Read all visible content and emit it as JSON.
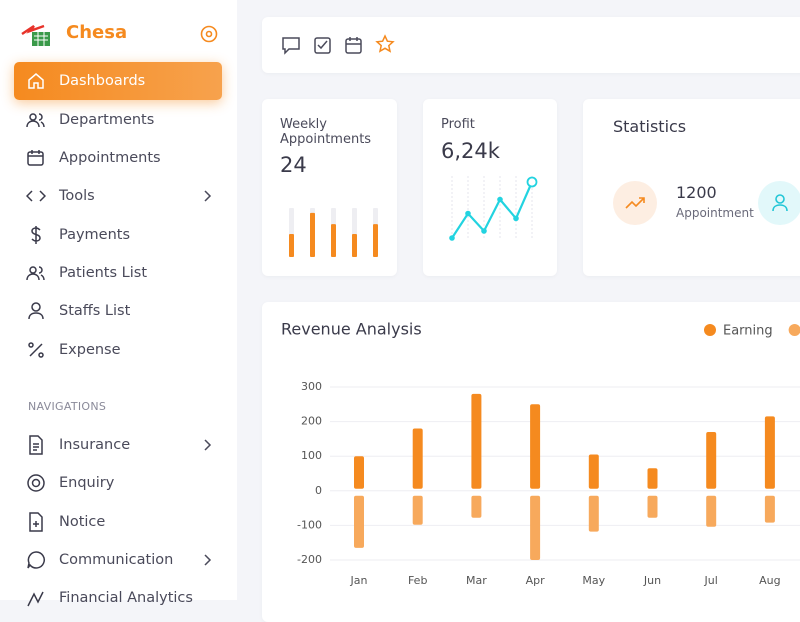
{
  "brand": "Chesa",
  "menu": [
    "Dashboards",
    "Departments",
    "Appointments",
    "Tools",
    "Payments",
    "Patients List",
    "Staffs List",
    "Expense"
  ],
  "navigations_heading": "NAVIGATIONS",
  "navigations": [
    "Insurance",
    "Enquiry",
    "Notice",
    "Communication",
    "Financial Analytics"
  ],
  "weekly": {
    "title": "Weekly Appointments",
    "value": 24,
    "bars": [
      47,
      90,
      67,
      47,
      67
    ],
    "ylim": [
      0,
      100
    ],
    "color": "#f58a1f"
  },
  "profit": {
    "title": "Profit",
    "value": "6,24k",
    "line": [
      10,
      45,
      20,
      65,
      38,
      90
    ],
    "ylim": [
      0,
      100
    ],
    "color": "#22d3e0"
  },
  "statistics": {
    "title": "Statistics",
    "value": 1200,
    "label": "Appointment"
  },
  "chart_data": {
    "type": "bar",
    "title": "Revenue Analysis",
    "categories": [
      "Jan",
      "Feb",
      "Mar",
      "Apr",
      "May",
      "Jun",
      "Jul",
      "Aug"
    ],
    "series": [
      {
        "name": "Earning",
        "color": "#f58a1f",
        "values": [
          100,
          180,
          280,
          250,
          105,
          65,
          170,
          215
        ]
      },
      {
        "color": "#f7a95c",
        "values": [
          -165,
          -98,
          -78,
          -200,
          -118,
          -78,
          -104,
          -92
        ]
      }
    ],
    "ylim": [
      -200,
      300
    ],
    "yticks": [
      300,
      200,
      100,
      0,
      -100,
      -200
    ],
    "grid": true
  }
}
